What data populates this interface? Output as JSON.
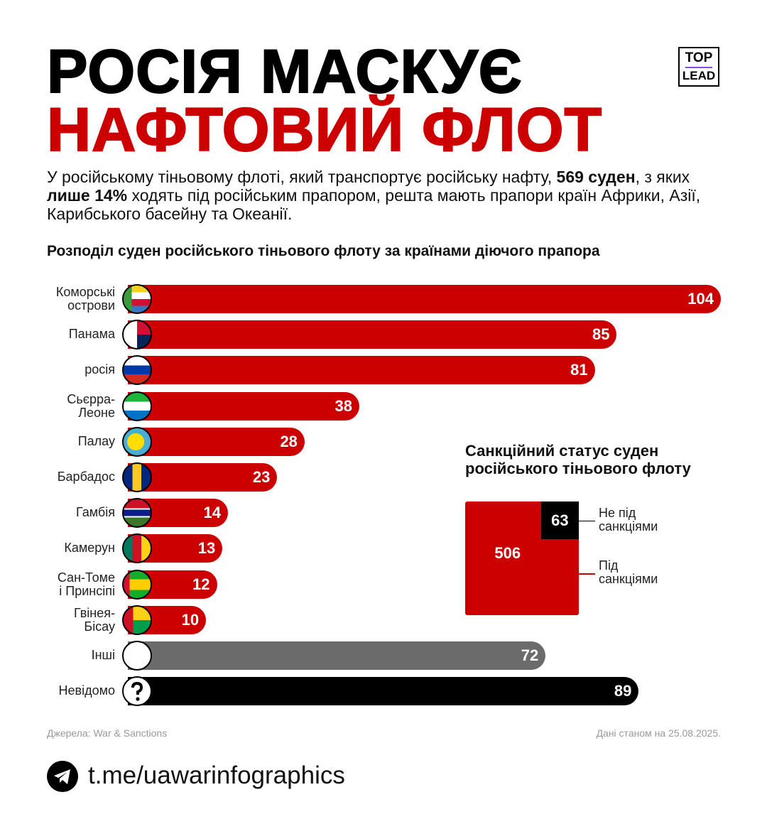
{
  "header": {
    "title_line1": "РОСІЯ МАСКУЄ",
    "title_line2": "НАФТОВИЙ ФЛОТ",
    "logo_top": "TOP",
    "logo_bottom": "LEAD"
  },
  "intro": [
    {
      "text": "У російському тіньовому флоті, який транспортує російську нафту, ",
      "bold": false
    },
    {
      "text": "569 суден",
      "bold": true
    },
    {
      "text": ", з яких ",
      "bold": false
    },
    {
      "text": "лише 14%",
      "bold": true
    },
    {
      "text": " ходять під російським прапором, решта мають прапори країн Африки, Азії, Карибського басейну та Океанії.",
      "bold": false
    }
  ],
  "chart_data": [
    {
      "type": "bar",
      "orientation": "horizontal",
      "title": "Розподіл суден російського тіньового флоту за країнами діючого прапора",
      "categories": [
        "Коморські\nострови",
        "Панама",
        "росія",
        "Сьєрра-\nЛеоне",
        "Палау",
        "Барбадос",
        "Гамбія",
        "Камерун",
        "Сан-Томе\nі Принсіпі",
        "Гвінея-\nБісау",
        "Інші",
        "Невідомо"
      ],
      "values": [
        104,
        85,
        81,
        38,
        28,
        23,
        14,
        13,
        12,
        10,
        72,
        89
      ],
      "colors": [
        "#cc0000",
        "#cc0000",
        "#cc0000",
        "#cc0000",
        "#cc0000",
        "#cc0000",
        "#cc0000",
        "#cc0000",
        "#cc0000",
        "#cc0000",
        "#6b6b6b",
        "#000000"
      ]
    },
    {
      "type": "area-square",
      "title": "Санкційний статус суден\nросійського тіньового флоту",
      "series": [
        {
          "name": "Не під\nсанкціями",
          "value": 63,
          "color": "#000000"
        },
        {
          "name": "Під\nсанкціями",
          "value": 506,
          "color": "#cc0000"
        }
      ]
    }
  ],
  "footer": {
    "source": "Джерела: War & Sanctions",
    "date": "Дані станом на 25.08.2025.",
    "link": "t.me/uawarinfographics"
  }
}
